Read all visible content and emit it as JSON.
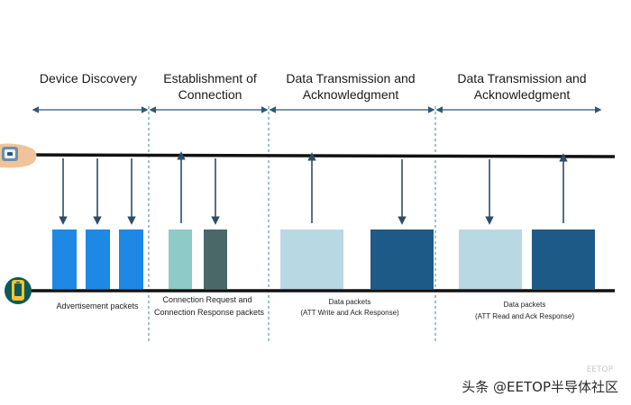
{
  "phases": [
    {
      "title_line1": "Device Discovery",
      "title_line2": ""
    },
    {
      "title_line1": "Establishment of",
      "title_line2": "Connection"
    },
    {
      "title_line1": "Data Transmission and",
      "title_line2": "Acknowledgment"
    },
    {
      "title_line1": "Data Transmission and",
      "title_line2": "Acknowledgment"
    }
  ],
  "captions": {
    "advertisement": "Advertisement packets",
    "connection_line1": "Connection Request and",
    "connection_line2": "Connection Response packets",
    "data1_line1": "Data packets",
    "data1_line2": "(ATT Write and Ack Response)",
    "data2_line1": "Data packets",
    "data2_line2": "(ATT Read and Ack Response)"
  },
  "watermark": {
    "main": "头条 @EETOP半导体社区",
    "faint": "EETOP"
  },
  "icons": {
    "top_device": "smartwatch-icon",
    "bottom_device": "phone-icon"
  },
  "colors": {
    "advertisement_packet": "#1e88e5",
    "connection_request_packet": "#8ecac8",
    "connection_response_packet": "#4a6868",
    "data_packet_light": "#b8d8e4",
    "data_packet_dark": "#1e5a87",
    "timeline": "#111111",
    "phase_arrow": "#2b5876",
    "divider": "#4a7f9a",
    "device_background": "#0d5a58",
    "device_icon": "#f4c430"
  }
}
